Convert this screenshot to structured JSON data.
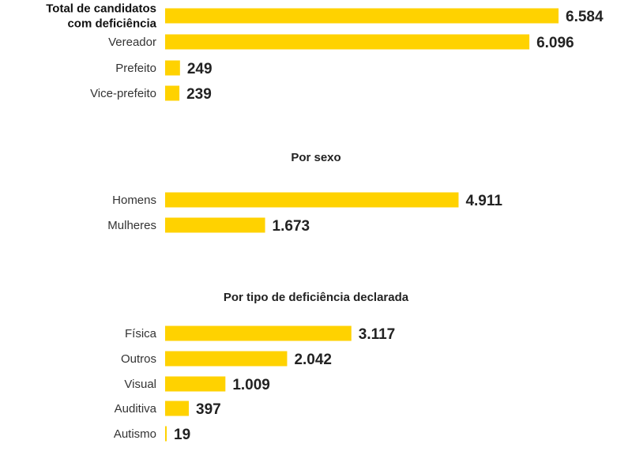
{
  "colors": {
    "bar": "#FFD200",
    "text": "#333333",
    "value_text": "#222222",
    "background": "#FFFFFF"
  },
  "chart_data": [
    {
      "type": "bar",
      "orientation": "horizontal",
      "title": "",
      "categories": [
        [
          "Total de candidatos",
          "com deficiência"
        ],
        "Vereador",
        "Prefeito",
        "Vice-prefeito"
      ],
      "values": [
        6584,
        6096,
        249,
        239
      ],
      "value_labels": [
        "6.584",
        "6.096",
        "249",
        "239"
      ],
      "bold_categories": [
        0
      ],
      "xlim": [
        0,
        6584
      ]
    },
    {
      "type": "bar",
      "orientation": "horizontal",
      "title": "Por sexo",
      "categories": [
        "Homens",
        "Mulheres"
      ],
      "values": [
        4911,
        1673
      ],
      "value_labels": [
        "4.911",
        "1.673"
      ],
      "bold_categories": [],
      "xlim": [
        0,
        6584
      ]
    },
    {
      "type": "bar",
      "orientation": "horizontal",
      "title": "Por tipo de deficiência declarada",
      "categories": [
        "Física",
        "Outros",
        "Visual",
        "Auditiva",
        "Autismo"
      ],
      "values": [
        3117,
        2042,
        1009,
        397,
        19
      ],
      "value_labels": [
        "3.117",
        "2.042",
        "1.009",
        "397",
        "19"
      ],
      "bold_categories": [],
      "xlim": [
        0,
        6584
      ]
    }
  ]
}
